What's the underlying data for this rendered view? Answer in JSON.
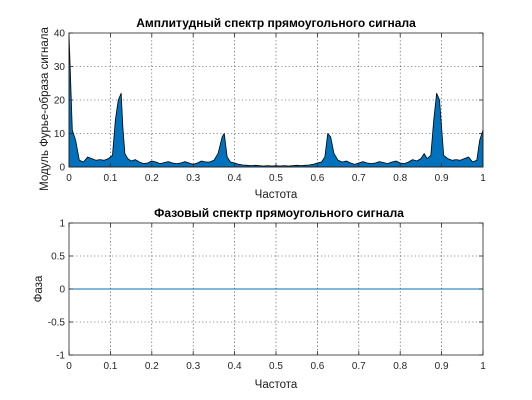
{
  "chart_data": [
    {
      "type": "area",
      "title": "Амплитудный спектр прямоугольного сигнала",
      "xlabel": "Частота",
      "ylabel": "Модуль Фурье-образа сигнала",
      "xlim": [
        0,
        1
      ],
      "ylim": [
        0,
        40
      ],
      "xticks": [
        "0",
        "0.1",
        "0.2",
        "0.3",
        "0.4",
        "0.5",
        "0.6",
        "0.7",
        "0.8",
        "0.9",
        "1"
      ],
      "yticks": [
        "0",
        "10",
        "20",
        "30",
        "40"
      ],
      "grid": true,
      "fill_color": "#0072bd",
      "line_color": "#000000",
      "series": [
        {
          "x": [
            0,
            0.008,
            0.016,
            0.025,
            0.035,
            0.045,
            0.055,
            0.065,
            0.075,
            0.085,
            0.095,
            0.105,
            0.112,
            0.119,
            0.126,
            0.13,
            0.135,
            0.142,
            0.15,
            0.16,
            0.17,
            0.18,
            0.19,
            0.2,
            0.21,
            0.22,
            0.23,
            0.24,
            0.25,
            0.26,
            0.27,
            0.28,
            0.29,
            0.3,
            0.31,
            0.32,
            0.33,
            0.34,
            0.35,
            0.36,
            0.37,
            0.375,
            0.382,
            0.39,
            0.4,
            0.41,
            0.42,
            0.43,
            0.44,
            0.45,
            0.46,
            0.47,
            0.48,
            0.49,
            0.5,
            0.51,
            0.52,
            0.53,
            0.54,
            0.55,
            0.56,
            0.57,
            0.58,
            0.59,
            0.6,
            0.61,
            0.618,
            0.625,
            0.632,
            0.64,
            0.65,
            0.66,
            0.67,
            0.68,
            0.69,
            0.7,
            0.71,
            0.72,
            0.73,
            0.74,
            0.75,
            0.76,
            0.77,
            0.78,
            0.79,
            0.8,
            0.81,
            0.82,
            0.83,
            0.84,
            0.85,
            0.858,
            0.865,
            0.874,
            0.881,
            0.888,
            0.895,
            0.905,
            0.915,
            0.925,
            0.935,
            0.945,
            0.955,
            0.965,
            0.975,
            0.985,
            0.992,
            1
          ],
          "values": [
            40,
            11,
            8,
            2,
            1.5,
            3,
            2.5,
            2,
            2.2,
            2,
            2.5,
            3.5,
            14,
            20,
            22,
            12,
            4,
            2.5,
            1.8,
            2.2,
            1.5,
            1,
            1.2,
            1.8,
            1.5,
            1,
            1.3,
            1.6,
            1.2,
            1,
            1.2,
            1.6,
            1.2,
            0.8,
            1.2,
            1.8,
            1.5,
            1.5,
            2,
            4,
            9,
            10,
            3,
            1.5,
            1.2,
            0.8,
            0.6,
            0.5,
            0.4,
            0.5,
            0.4,
            0.3,
            0.4,
            0.3,
            0.4,
            0.3,
            0.4,
            0.3,
            0.4,
            0.5,
            0.4,
            0.5,
            0.6,
            0.8,
            1.2,
            1.5,
            3,
            10,
            9,
            4,
            2,
            1.5,
            1.8,
            1.2,
            0.8,
            1.2,
            1.6,
            1.2,
            1,
            1.2,
            1.6,
            1.3,
            1,
            1.5,
            1.8,
            1.2,
            1,
            1.5,
            2.2,
            1.8,
            2.5,
            4,
            2.5,
            3.5,
            14,
            22,
            20,
            3.5,
            2.5,
            2,
            2.2,
            2,
            2.5,
            3,
            1.5,
            2,
            8,
            11
          ]
        }
      ]
    },
    {
      "type": "line",
      "title": "Фазовый спектр прямоугольного сигнала",
      "xlabel": "Частота",
      "ylabel": "Фаза",
      "xlim": [
        0,
        1
      ],
      "ylim": [
        -1,
        1
      ],
      "xticks": [
        "0",
        "0.1",
        "0.2",
        "0.3",
        "0.4",
        "0.5",
        "0.6",
        "0.7",
        "0.8",
        "0.9",
        "1"
      ],
      "yticks": [
        "-1",
        "-0.5",
        "0",
        "0.5",
        "1"
      ],
      "grid": true,
      "line_color": "#0072bd",
      "series": [
        {
          "x": [
            0,
            1
          ],
          "values": [
            0,
            0
          ]
        }
      ]
    }
  ]
}
